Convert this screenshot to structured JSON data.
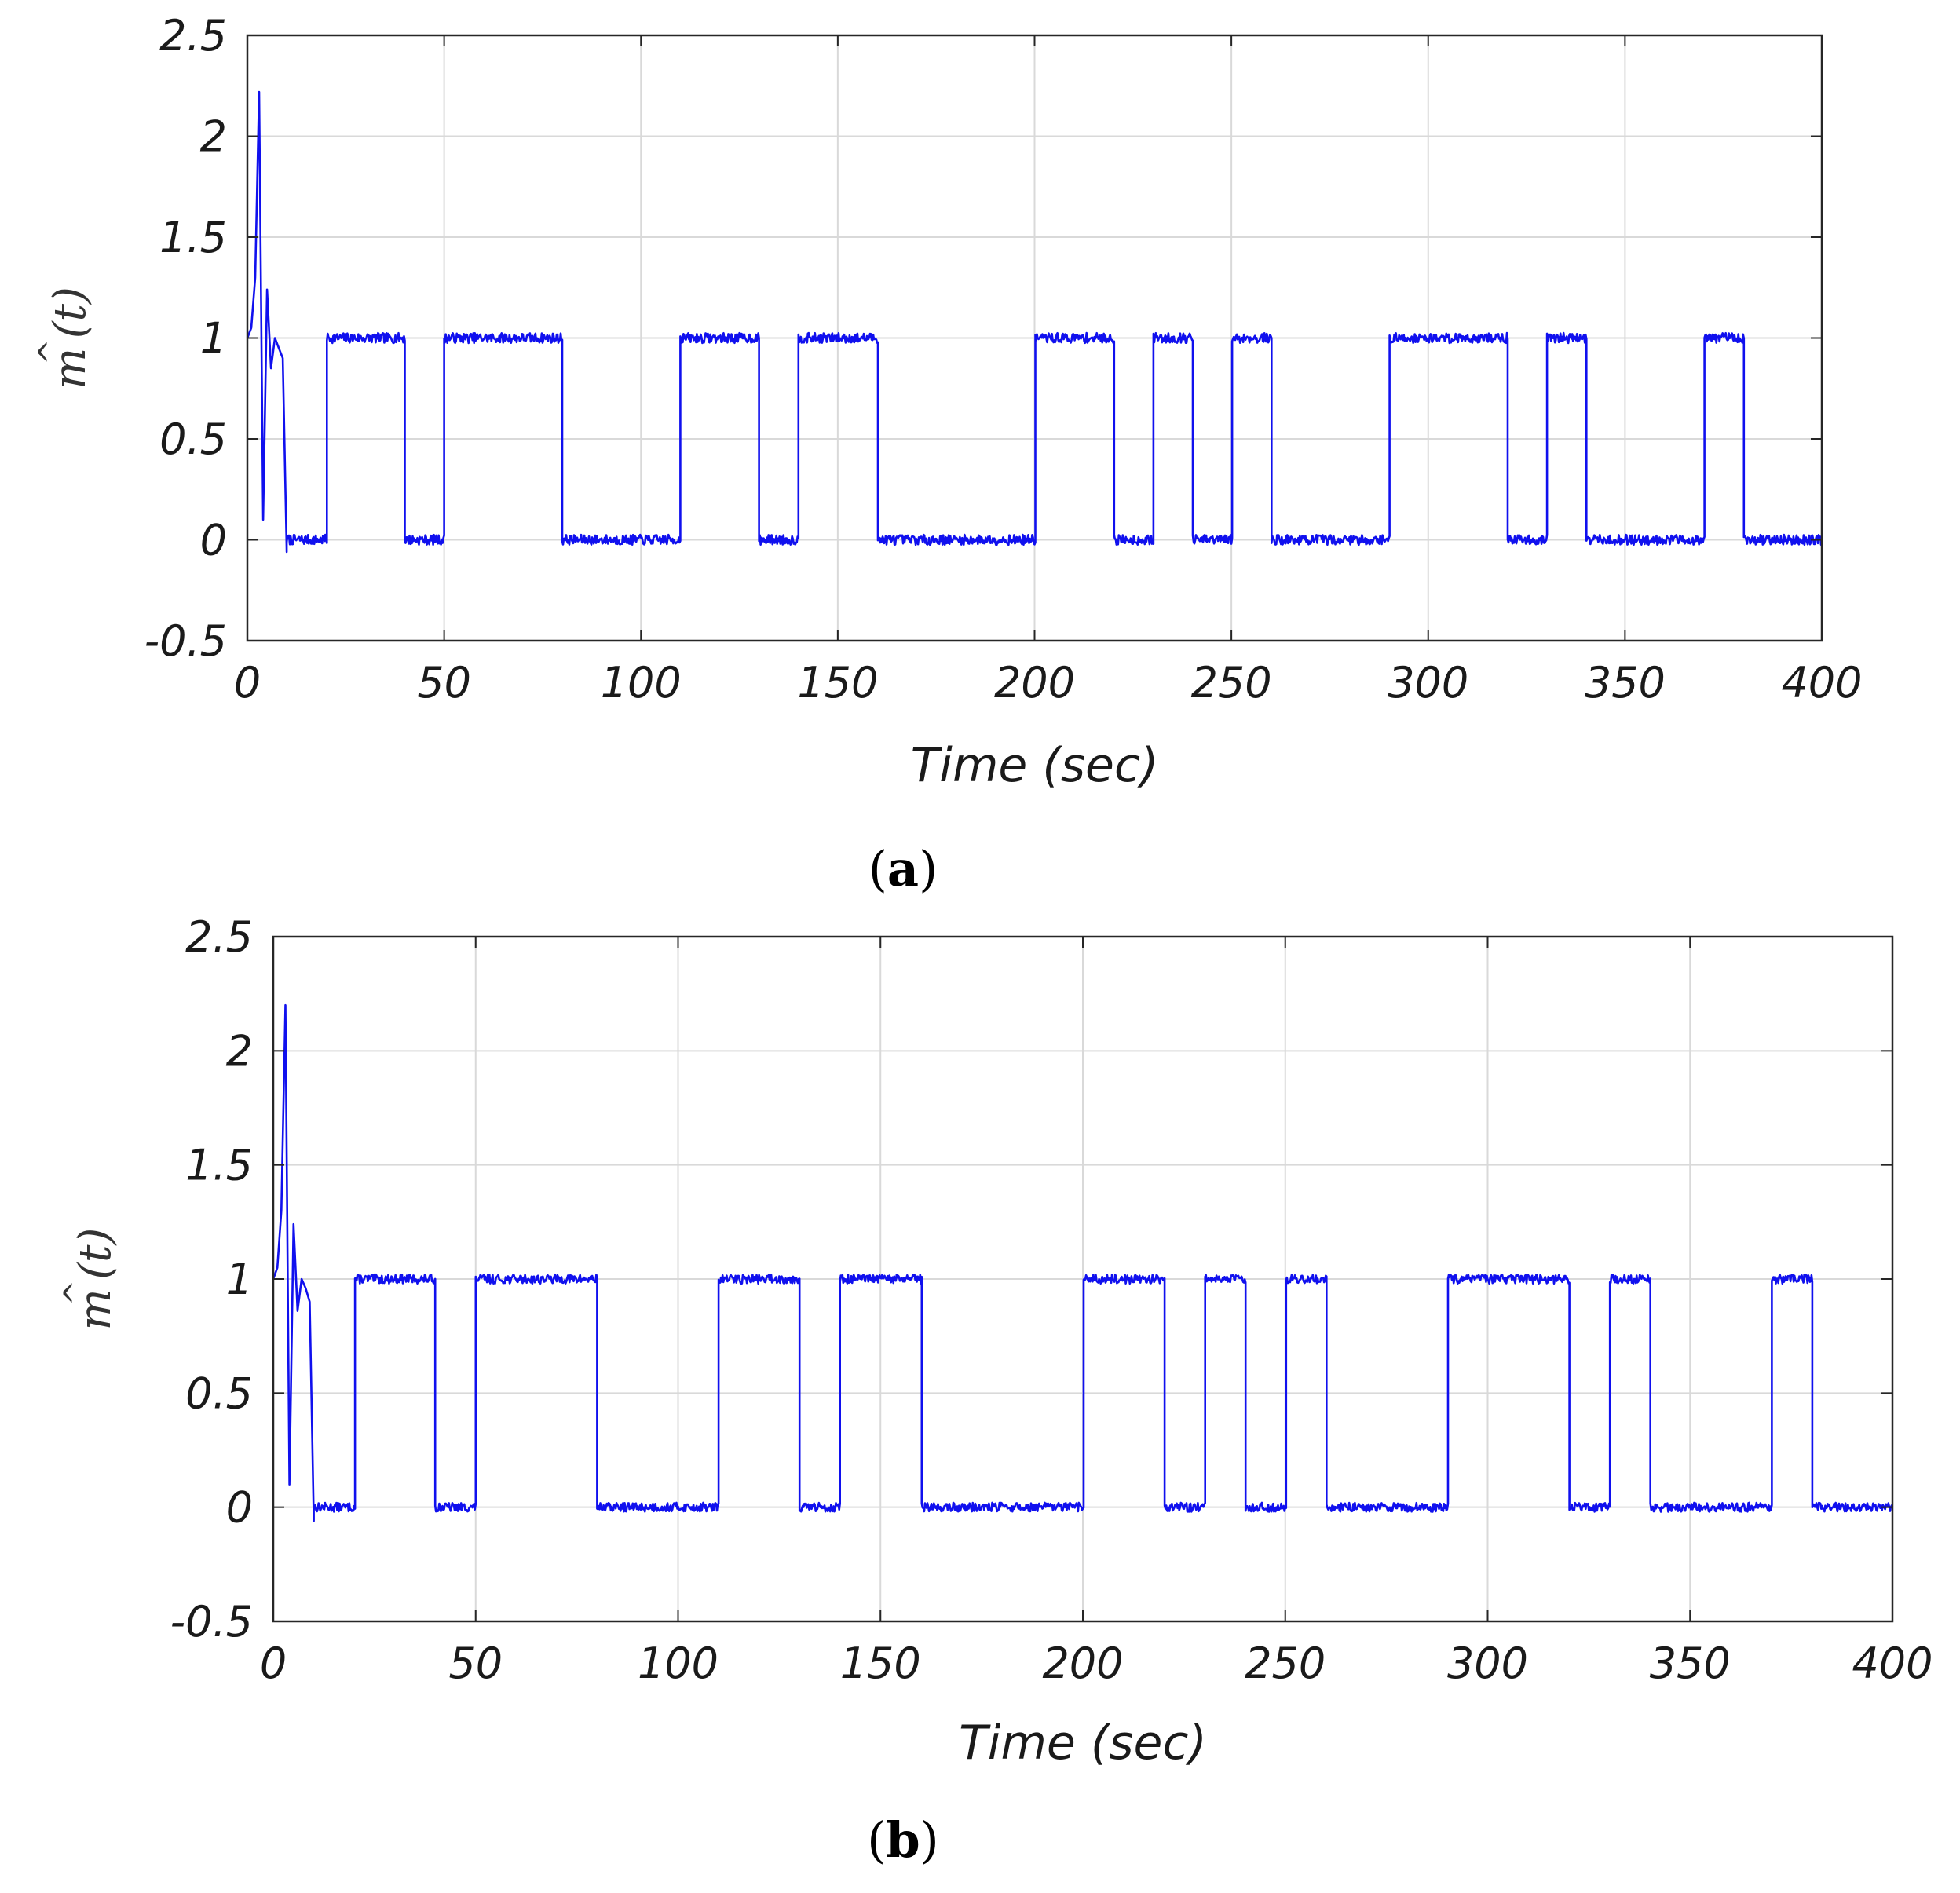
{
  "line_color": "#1010ee",
  "grid_color": "#d9d9d9",
  "chart_data": [
    {
      "type": "line",
      "panel": "a",
      "caption": {
        "open": "(",
        "letter": "a",
        "close": ")"
      },
      "xlabel": "Time (sec)",
      "ylabel": {
        "base": "m",
        "hat": "^",
        "arg": "(t)"
      },
      "xlim": [
        0,
        400
      ],
      "ylim": [
        -0.5,
        2.5
      ],
      "xticks": [
        0,
        50,
        100,
        150,
        200,
        250,
        300,
        350,
        400
      ],
      "xtick_labels": [
        "0",
        "50",
        "100",
        "150",
        "200",
        "250",
        "300",
        "350",
        "400"
      ],
      "yticks": [
        -0.5,
        0,
        0.5,
        1,
        1.5,
        2,
        2.5
      ],
      "ytick_labels": [
        "-0.5",
        "0",
        "0.5",
        "1",
        "1.5",
        "2",
        "2.5"
      ],
      "grid": true,
      "transient": [
        [
          0,
          1.0
        ],
        [
          1,
          1.05
        ],
        [
          2,
          1.3
        ],
        [
          3,
          2.22
        ],
        [
          4,
          0.1
        ],
        [
          5,
          1.24
        ],
        [
          6,
          0.85
        ],
        [
          7,
          1.0
        ],
        [
          8,
          0.95
        ],
        [
          9,
          0.9
        ],
        [
          10,
          -0.06
        ]
      ],
      "high_intervals": [
        [
          20,
          40
        ],
        [
          50,
          80
        ],
        [
          110,
          130
        ],
        [
          140,
          160
        ],
        [
          200,
          220
        ],
        [
          230,
          240
        ],
        [
          250,
          260
        ],
        [
          290,
          320
        ],
        [
          330,
          340
        ],
        [
          370,
          380
        ]
      ],
      "high_level": 1,
      "low_level": 0,
      "noise_amplitude": 0.025,
      "seed": 7
    },
    {
      "type": "line",
      "panel": "b",
      "caption": {
        "open": "(",
        "letter": "b",
        "close": ")"
      },
      "xlabel": "Time (sec)",
      "ylabel": {
        "base": "m",
        "hat": "^",
        "arg": "(t)"
      },
      "xlim": [
        0,
        400
      ],
      "ylim": [
        -0.5,
        2.5
      ],
      "xticks": [
        0,
        50,
        100,
        150,
        200,
        250,
        300,
        350,
        400
      ],
      "xtick_labels": [
        "0",
        "50",
        "100",
        "150",
        "200",
        "250",
        "300",
        "350",
        "400"
      ],
      "yticks": [
        -0.5,
        0,
        0.5,
        1,
        1.5,
        2,
        2.5
      ],
      "ytick_labels": [
        "-0.5",
        "0",
        "0.5",
        "1",
        "1.5",
        "2",
        "2.5"
      ],
      "grid": true,
      "transient": [
        [
          0,
          1.0
        ],
        [
          1,
          1.05
        ],
        [
          2,
          1.3
        ],
        [
          3,
          2.2
        ],
        [
          4,
          0.1
        ],
        [
          5,
          1.24
        ],
        [
          6,
          0.86
        ],
        [
          7,
          1.0
        ],
        [
          8,
          0.96
        ],
        [
          9,
          0.9
        ],
        [
          10,
          -0.06
        ]
      ],
      "high_intervals": [
        [
          20,
          40
        ],
        [
          50,
          80
        ],
        [
          110,
          130
        ],
        [
          140,
          160
        ],
        [
          200,
          220
        ],
        [
          230,
          240
        ],
        [
          250,
          260
        ],
        [
          290,
          320
        ],
        [
          330,
          340
        ],
        [
          370,
          380
        ]
      ],
      "high_level": 1,
      "low_level": 0,
      "noise_amplitude": 0.02,
      "seed": 13
    }
  ]
}
